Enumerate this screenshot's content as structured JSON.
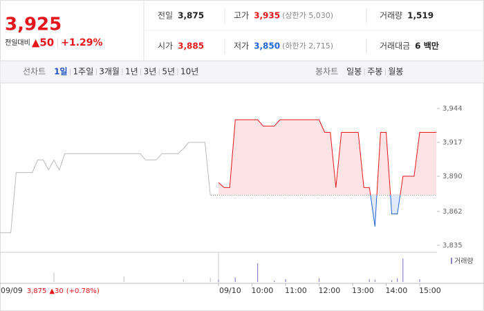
{
  "quote": {
    "price": "3,925",
    "change_label": "전일대비",
    "change": "▲50",
    "change_rate": "+1.29%",
    "color": "#e8141b"
  },
  "summary": [
    [
      {
        "label": "전일",
        "value": "3,875",
        "color": "#222"
      },
      {
        "label": "고가",
        "value": "3,935",
        "color": "#e8141b",
        "note": "(상한가 5,030)"
      },
      {
        "label": "거래량",
        "value": "1,519",
        "color": "#222"
      }
    ],
    [
      {
        "label": "시가",
        "value": "3,885",
        "color": "#e8141b"
      },
      {
        "label": "저가",
        "value": "3,850",
        "color": "#1f64d8",
        "note": "(하한가 2,715)"
      },
      {
        "label": "거래대금",
        "value": "6 백만",
        "color": "#222"
      }
    ]
  ],
  "tabs": {
    "line_label": "선차트",
    "line_periods": [
      "1일",
      "1주일",
      "3개월",
      "1년",
      "3년",
      "5년",
      "10년"
    ],
    "candle_label": "봉차트",
    "candle_periods": [
      "일봉",
      "주봉",
      "월봉"
    ]
  },
  "chart_data": {
    "type": "line",
    "ylim": [
      3830,
      3955
    ],
    "yticks": [
      {
        "value": 3944,
        "label": "3,944"
      },
      {
        "value": 3917,
        "label": "3,917"
      },
      {
        "value": 3890,
        "label": "3,890"
      },
      {
        "value": 3862,
        "label": "3,862"
      },
      {
        "value": 3835,
        "label": "3,835"
      }
    ],
    "xticks": [
      {
        "value": "09:00",
        "label": "09/10"
      },
      {
        "value": "10:00",
        "label": "10:00"
      },
      {
        "value": "11:00",
        "label": "11:00"
      },
      {
        "value": "12:00",
        "label": "12:00"
      },
      {
        "value": "13:00",
        "label": "13:00"
      },
      {
        "value": "14:00",
        "label": "14:00"
      },
      {
        "value": "15:00",
        "label": "15:00"
      }
    ],
    "up_color": "#e8141b",
    "down_color": "#1f64d8",
    "previous": {
      "date": "09/09",
      "close": {
        "value": 3875,
        "label": "3,875"
      },
      "change": {
        "value": 30,
        "label": "▲30"
      },
      "rate": "(+0.78%)",
      "color": "#bbbbbb",
      "x": [
        "09:00",
        "09:10",
        "09:20",
        "09:30",
        "09:40",
        "09:50",
        "10:00",
        "10:10",
        "10:20",
        "10:30",
        "10:40",
        "10:50",
        "11:00",
        "11:10",
        "11:20",
        "11:30",
        "11:40",
        "11:50",
        "12:00",
        "12:10",
        "12:20",
        "12:30",
        "12:40",
        "12:50",
        "13:00",
        "13:10",
        "13:20",
        "13:30",
        "13:40",
        "13:50",
        "14:00",
        "14:10",
        "14:20",
        "14:30",
        "14:40",
        "14:50",
        "15:00",
        "15:10",
        "15:20",
        "15:30"
      ],
      "values": [
        3845,
        3845,
        3845,
        3893,
        3893,
        3893,
        3893,
        3903,
        3903,
        3895,
        3903,
        3895,
        3908,
        3908,
        3908,
        3908,
        3908,
        3908,
        3908,
        3908,
        3908,
        3908,
        3908,
        3908,
        3908,
        3908,
        3908,
        3903,
        3903,
        3903,
        3908,
        3908,
        3908,
        3908,
        3912,
        3917,
        3917,
        3917,
        3917,
        3875
      ]
    },
    "today": {
      "x": [
        "09:00",
        "09:10",
        "09:20",
        "09:30",
        "09:40",
        "09:50",
        "10:00",
        "10:10",
        "10:20",
        "10:30",
        "10:40",
        "10:50",
        "11:00",
        "11:10",
        "11:20",
        "11:30",
        "11:40",
        "11:50",
        "12:00",
        "12:10",
        "12:20",
        "12:30",
        "12:40",
        "12:50",
        "13:00",
        "13:10",
        "13:20",
        "13:30",
        "13:40",
        "13:50",
        "14:00",
        "14:10",
        "14:20",
        "14:30",
        "14:40",
        "14:50",
        "15:00",
        "15:10",
        "15:20",
        "15:30"
      ],
      "values": [
        3885,
        3881,
        3881,
        3935,
        3935,
        3935,
        3935,
        3935,
        3930,
        3930,
        3930,
        3935,
        3935,
        3935,
        3935,
        3935,
        3935,
        3935,
        3935,
        3925,
        3925,
        3881,
        3925,
        3925,
        3925,
        3925,
        3881,
        3881,
        3850,
        3925,
        3925,
        3860,
        3860,
        3890,
        3890,
        3890,
        3925,
        3925,
        3925,
        3925
      ]
    },
    "volume": {
      "name": "거래량",
      "color": "#8a84c9",
      "ylim": [
        0,
        560
      ],
      "x": [
        "09:00",
        "09:30",
        "10:10",
        "10:40",
        "11:00",
        "12:00",
        "13:30",
        "13:40",
        "14:10",
        "14:20",
        "14:30",
        "15:00"
      ],
      "values": [
        50,
        100,
        400,
        30,
        60,
        80,
        60,
        50,
        40,
        80,
        500,
        60
      ]
    },
    "previous_volume": {
      "color": "#c8c8c8",
      "x": [
        "10:40",
        "12:50",
        "14:40",
        "15:30"
      ],
      "values": [
        200,
        120,
        60,
        90
      ]
    }
  }
}
